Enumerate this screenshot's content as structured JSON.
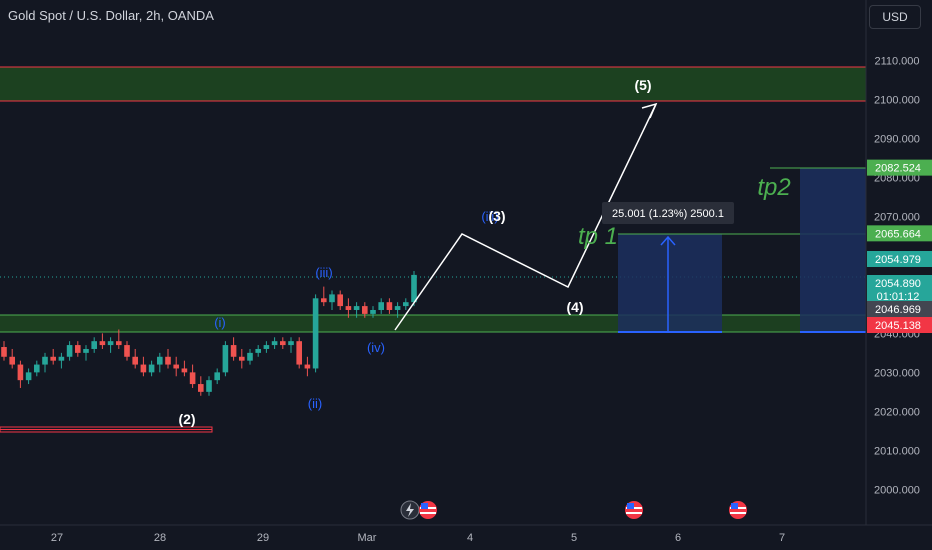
{
  "header": {
    "title": "Gold Spot / U.S. Dollar, 2h, OANDA",
    "currency": "USD"
  },
  "price_axis": {
    "ticks": [
      "2110.000",
      "2100.000",
      "2090.000",
      "2080.000",
      "2070.000",
      "2060.000",
      "2050.000",
      "2040.000",
      "2030.000",
      "2020.000",
      "2010.000",
      "2000.000"
    ],
    "tick_values": [
      2110,
      2100,
      2090,
      2080,
      2070,
      2060,
      2050,
      2040,
      2030,
      2020,
      2010,
      2000
    ],
    "labels": [
      {
        "text": "2082.524",
        "value": 2082.524,
        "color": "#4caf50"
      },
      {
        "text": "2065.664",
        "value": 2065.664,
        "color": "#4caf50"
      },
      {
        "text": "2054.979",
        "value": 2054.979,
        "color": "#26a69a"
      },
      {
        "text": "2054.890",
        "value": 2054.89,
        "color": "#26a69a",
        "sub": "01:01:12"
      },
      {
        "text": "2046.969",
        "value": 2046.969,
        "color": "#434651"
      },
      {
        "text": "2045.138",
        "value": 2045.138,
        "color": "#f23645"
      }
    ]
  },
  "time_axis": {
    "ticks": [
      "27",
      "28",
      "29",
      "Mar",
      "4",
      "5",
      "6",
      "7"
    ]
  },
  "annotations": {
    "wave_5": "(5)",
    "wave_3": "(3)",
    "wave_3_blue": "(iii)",
    "wave_4": "(4)",
    "wave_2": "(2)",
    "wave_i": "(i)",
    "wave_ii": "(ii)",
    "wave_iii": "(iii)",
    "wave_iv": "(iv)",
    "tp1": "tp 1",
    "tp2": "tp2",
    "measure": "25.001 (1.23%) 2500.1"
  },
  "colors": {
    "up": "#26a69a",
    "down": "#ef5350",
    "zone": "#1e4620",
    "zone_border": "#f23645",
    "accent": "#2962ff",
    "tp_text": "#4caf50"
  },
  "candles": [
    [
      2036.5,
      2038,
      2033,
      2034
    ],
    [
      2034,
      2036,
      2031,
      2032
    ],
    [
      2032,
      2033,
      2026,
      2028
    ],
    [
      2028,
      2031,
      2027,
      2030
    ],
    [
      2030,
      2033,
      2029,
      2032
    ],
    [
      2032,
      2035,
      2030,
      2034
    ],
    [
      2034,
      2036,
      2032,
      2033
    ],
    [
      2033,
      2035,
      2031,
      2034
    ],
    [
      2034,
      2038,
      2033,
      2037
    ],
    [
      2037,
      2038,
      2034,
      2035
    ],
    [
      2035,
      2037,
      2033,
      2036
    ],
    [
      2036,
      2039,
      2035,
      2038
    ],
    [
      2038,
      2040,
      2036,
      2037
    ],
    [
      2037,
      2039,
      2035,
      2038
    ],
    [
      2038,
      2041,
      2036,
      2037
    ],
    [
      2037,
      2038,
      2033,
      2034
    ],
    [
      2034,
      2036,
      2031,
      2032
    ],
    [
      2032,
      2034,
      2029,
      2030
    ],
    [
      2030,
      2033,
      2029,
      2032
    ],
    [
      2032,
      2035,
      2030,
      2034
    ],
    [
      2034,
      2036,
      2031,
      2032
    ],
    [
      2032,
      2034,
      2029,
      2031
    ],
    [
      2031,
      2033,
      2029,
      2030
    ],
    [
      2030,
      2032,
      2026,
      2027
    ],
    [
      2027,
      2029,
      2024,
      2025
    ],
    [
      2025,
      2029,
      2024,
      2028
    ],
    [
      2028,
      2031,
      2027,
      2030
    ],
    [
      2030,
      2038,
      2029,
      2037
    ],
    [
      2037,
      2039,
      2033,
      2034
    ],
    [
      2034,
      2036,
      2031,
      2033
    ],
    [
      2033,
      2036,
      2032,
      2035
    ],
    [
      2035,
      2037,
      2034,
      2036
    ],
    [
      2036,
      2038,
      2035,
      2037
    ],
    [
      2037,
      2039,
      2036,
      2038
    ],
    [
      2038,
      2039,
      2036,
      2037
    ],
    [
      2037,
      2039,
      2035,
      2038
    ],
    [
      2038,
      2039,
      2031,
      2032
    ],
    [
      2032,
      2034,
      2029,
      2031
    ],
    [
      2031,
      2050,
      2030,
      2049
    ],
    [
      2049,
      2052,
      2047,
      2048
    ],
    [
      2048,
      2051,
      2046,
      2050
    ],
    [
      2050,
      2051,
      2046,
      2047
    ],
    [
      2047,
      2049,
      2044,
      2046
    ],
    [
      2046,
      2048,
      2044,
      2047
    ],
    [
      2047,
      2048,
      2044,
      2045
    ],
    [
      2045,
      2047,
      2044,
      2046
    ],
    [
      2046,
      2049,
      2045,
      2048
    ],
    [
      2048,
      2049,
      2045,
      2046
    ],
    [
      2046,
      2048,
      2044,
      2047
    ],
    [
      2047,
      2049,
      2046,
      2048
    ],
    [
      2048,
      2056,
      2047,
      2055
    ]
  ]
}
